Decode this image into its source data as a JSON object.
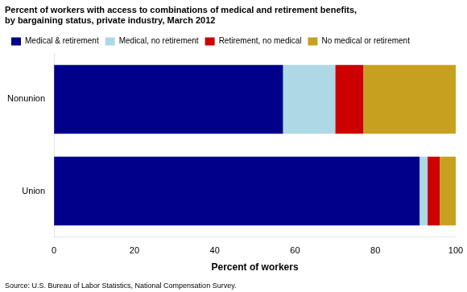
{
  "chart_data": {
    "type": "bar",
    "orientation": "horizontal",
    "stacked": true,
    "title": [
      "Percent of workers with access to combinations of medical and retirement benefits,",
      "by bargaining status, private industry, March 2012"
    ],
    "source": "Source: U.S. Bureau of Labor Statistics, National Compensation Survey.",
    "xlabel": "Percent of workers",
    "categories": [
      "Nonunion",
      "Union"
    ],
    "series": [
      {
        "name": "Medical & retirement",
        "color": "#00008B",
        "values": [
          57,
          91
        ]
      },
      {
        "name": "Medical, no retirement",
        "color": "#ADD8E6",
        "values": [
          13,
          2
        ]
      },
      {
        "name": "Retirement, no medical",
        "color": "#CC0000",
        "values": [
          7,
          3
        ]
      },
      {
        "name": "No medical or retirement",
        "color": "#C8A020",
        "values": [
          23,
          4
        ]
      }
    ],
    "xlim": [
      0,
      100
    ],
    "xticks": [
      0,
      20,
      40,
      60,
      80,
      100
    ],
    "grid": false,
    "legend": "upper left"
  }
}
